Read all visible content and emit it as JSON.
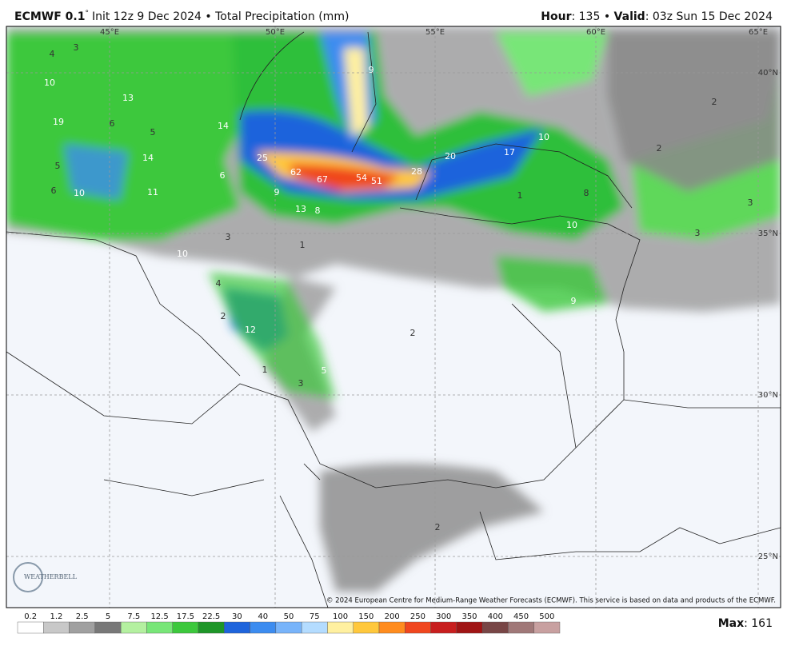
{
  "header": {
    "model": "ECMWF 0.1",
    "degree": "°",
    "init": "Init 12z 9 Dec 2024",
    "separator": "•",
    "product": "Total Precipitation (mm)",
    "hour_label": "Hour",
    "hour": ": 135",
    "valid_label": "Valid",
    "valid": ": 03z Sun 15 Dec 2024"
  },
  "map": {
    "longitudes": [
      "45°E",
      "50°E",
      "55°E",
      "60°E",
      "65°E"
    ],
    "latitudes": [
      "40°N",
      "35°N",
      "30°N",
      "25°N"
    ],
    "labels": [
      "4",
      "3",
      "10",
      "13",
      "19",
      "6",
      "5",
      "14",
      "14",
      "5",
      "6",
      "10",
      "11",
      "6",
      "25",
      "62",
      "67",
      "54",
      "51",
      "28",
      "20",
      "17",
      "10",
      "9",
      "13",
      "8",
      "3",
      "10",
      "1",
      "1",
      "8",
      "10",
      "3",
      "3",
      "2",
      "2",
      "9",
      "9",
      "4",
      "2",
      "12",
      "1",
      "5",
      "3",
      "2",
      "2"
    ],
    "logo": "WEATHERBELL",
    "copyright": "© 2024 European Centre for Medium-Range Weather Forecasts (ECMWF). This service is based on data and products of the ECMWF."
  },
  "colorbar": {
    "ticks": [
      0.2,
      1.2,
      2.5,
      5,
      7.5,
      12.5,
      17.5,
      22.5,
      30,
      40,
      50,
      75,
      100,
      150,
      200,
      250,
      300,
      350,
      400,
      450,
      500
    ],
    "colors": [
      "#ffffff",
      "#c8c8c8",
      "#a0a0a0",
      "#787878",
      "#b4f0a0",
      "#78e678",
      "#3cc83c",
      "#1e9628",
      "#1e64dc",
      "#3c8cf0",
      "#78b4fa",
      "#b4dcff",
      "#fff0a0",
      "#ffc83c",
      "#ff8c1e",
      "#f0461e",
      "#c81e1e",
      "#a01414",
      "#784646",
      "#a07878",
      "#c8a0a0"
    ],
    "max_label": "Max",
    "max": ": 161"
  }
}
